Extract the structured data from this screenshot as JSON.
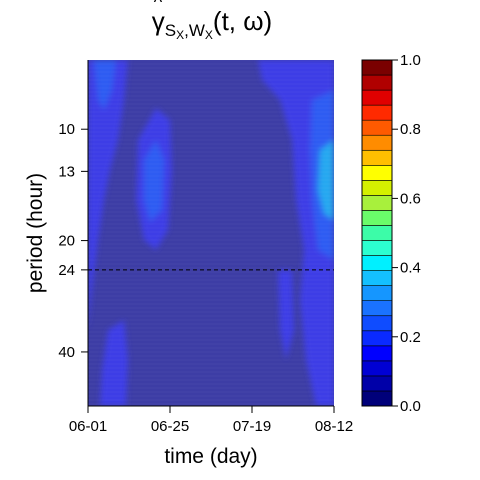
{
  "title": {
    "symbol": "γ",
    "subscript_1": "S",
    "subscript_1_sub": "X",
    "separator": ",",
    "subscript_2": "W",
    "subscript_2_sub": "X",
    "args": "(t, ω)"
  },
  "chart_data": {
    "type": "heatmap",
    "xlabel": "time (day)",
    "ylabel": "period (hour)",
    "x_tick_labels": [
      "06-01",
      "06-25",
      "07-19",
      "08-12"
    ],
    "x_range": [
      "06-01",
      "08-12"
    ],
    "y_tick_labels": [
      "10",
      "13",
      "20",
      "24",
      "40"
    ],
    "y_scale": "log",
    "y_range": [
      6.5,
      56
    ],
    "y_reversed": true,
    "reference_line": {
      "period": 24,
      "style": "dashed"
    },
    "colorbar": {
      "range": [
        0,
        1
      ],
      "tick_labels": [
        "0.0",
        "0.2",
        "0.4",
        "0.6",
        "0.8",
        "1.0"
      ],
      "levels": 20,
      "colors": [
        "#00007a",
        "#0000a8",
        "#0000d4",
        "#0000ff",
        "#0a2aff",
        "#0f4cff",
        "#1a72ff",
        "#1596ff",
        "#14c0ff",
        "#00f0ff",
        "#2cffd0",
        "#3cfca8",
        "#6afc6a",
        "#a8f03c",
        "#d4f000",
        "#ffff00",
        "#ffbf00",
        "#ff8c00",
        "#ff5a00",
        "#ff2a00",
        "#e00000",
        "#b00000",
        "#7a0000"
      ]
    },
    "background_color": "#3d3da5",
    "grid": false
  }
}
